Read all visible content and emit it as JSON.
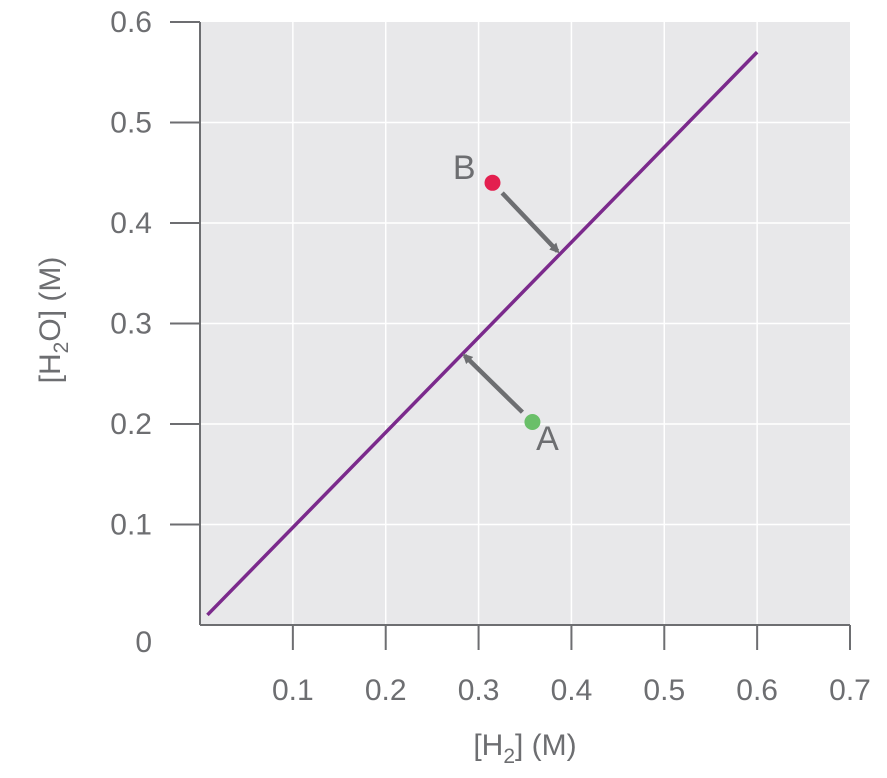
{
  "chart_data": {
    "type": "line",
    "xlabel": {
      "prefix": "[H",
      "sub": "2",
      "suffix": "] (M)"
    },
    "ylabel": {
      "prefix": "[H",
      "sub": "2",
      "suffix": "O] (M)"
    },
    "xlim": [
      0,
      0.7
    ],
    "ylim": [
      0,
      0.6
    ],
    "x_ticks": [
      "0.1",
      "0.2",
      "0.3",
      "0.4",
      "0.5",
      "0.6",
      "0.7"
    ],
    "x_tick_values": [
      0.1,
      0.2,
      0.3,
      0.4,
      0.5,
      0.6,
      0.7
    ],
    "y_ticks": [
      "0",
      "0.1",
      "0.2",
      "0.3",
      "0.4",
      "0.5",
      "0.6"
    ],
    "y_tick_values": [
      0,
      0.1,
      0.2,
      0.3,
      0.4,
      0.5,
      0.6
    ],
    "grid": true,
    "series": [
      {
        "x": [
          0.008,
          0.6
        ],
        "y": [
          0.01,
          0.57
        ],
        "color": "#7b2a8c"
      }
    ],
    "points": [
      {
        "label": "B",
        "x": 0.315,
        "y": 0.44,
        "color": "#e31f4f",
        "arrow_to": {
          "x": 0.385,
          "y": 0.372
        }
      },
      {
        "label": "A",
        "x": 0.358,
        "y": 0.202,
        "color": "#6abf69",
        "arrow_to": {
          "x": 0.285,
          "y": 0.268
        }
      }
    ],
    "colors": {
      "plot_bg": "#e8e8ea",
      "grid": "#ffffff",
      "axis": "#6d6e71",
      "arrow": "#6d6e71"
    }
  }
}
